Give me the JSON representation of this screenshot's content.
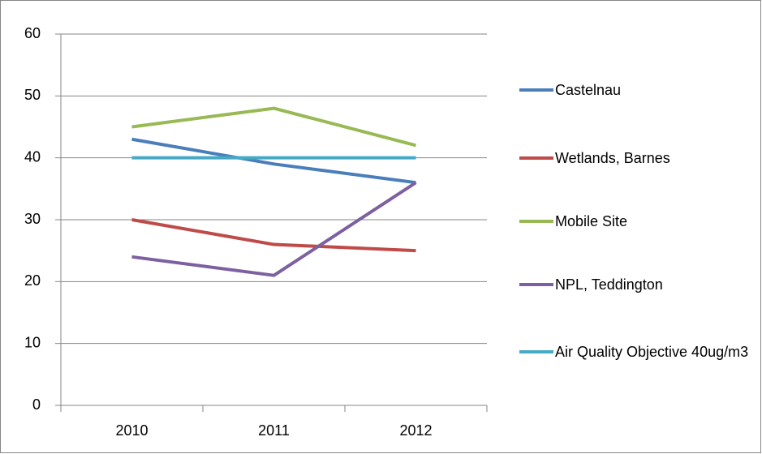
{
  "chart_data": {
    "type": "line",
    "categories": [
      "2010",
      "2011",
      "2012"
    ],
    "series": [
      {
        "name": "Castelnau",
        "color": "#4a7ebb",
        "values": [
          43,
          39,
          36
        ]
      },
      {
        "name": "Wetlands, Barnes",
        "color": "#be4b48",
        "values": [
          30,
          26,
          25
        ]
      },
      {
        "name": "Mobile Site",
        "color": "#98b954",
        "values": [
          45,
          48,
          42
        ]
      },
      {
        "name": "NPL, Teddington",
        "color": "#7d60a0",
        "values": [
          24,
          21,
          36
        ]
      },
      {
        "name": "Air Quality Objective 40ug/m3",
        "color": "#46aac5",
        "values": [
          40,
          40,
          40
        ]
      }
    ],
    "ylim": [
      0,
      60
    ],
    "yticks": [
      0,
      10,
      20,
      30,
      40,
      50,
      60
    ],
    "grid": true,
    "legend": "right"
  }
}
